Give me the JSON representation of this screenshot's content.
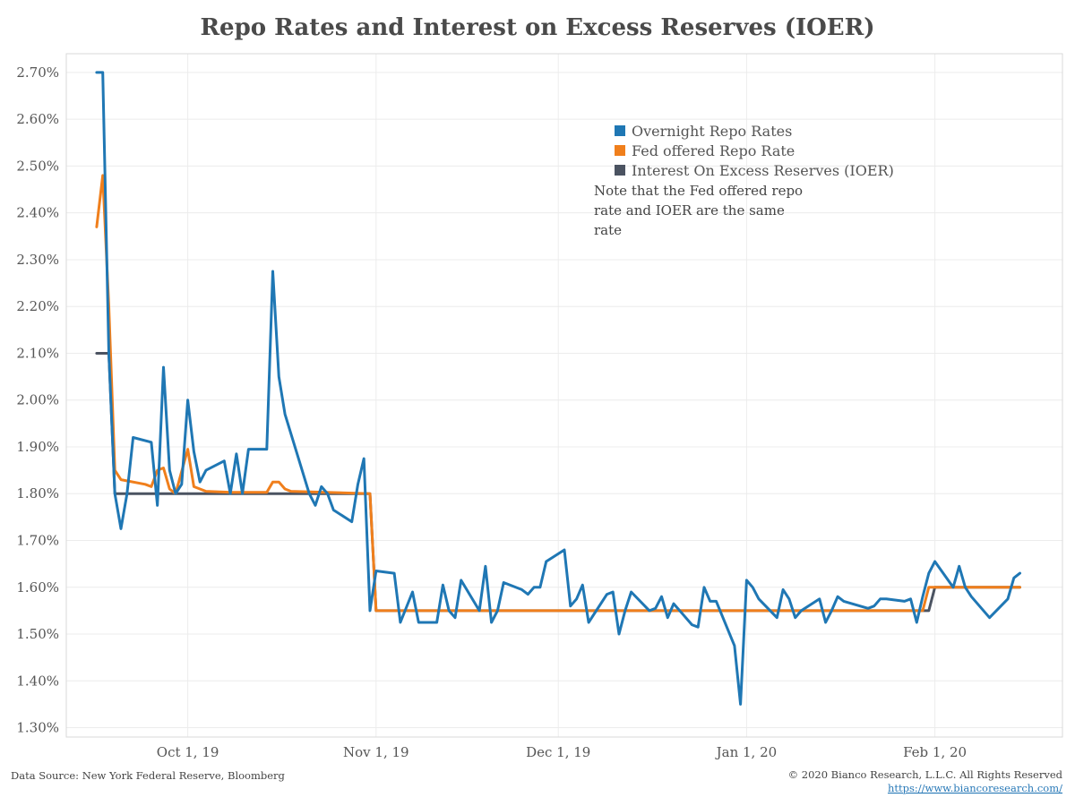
{
  "chart_data": {
    "type": "line",
    "title": "Repo Rates and Interest on Excess Reserves (IOER)",
    "xlabel": "",
    "ylabel": "",
    "ylim": [
      1.28,
      2.74
    ],
    "xlim": [
      "2019-09-11",
      "2020-02-22"
    ],
    "y_ticks": [
      "1.30%",
      "1.40%",
      "1.50%",
      "1.60%",
      "1.70%",
      "1.80%",
      "1.90%",
      "2.00%",
      "2.10%",
      "2.20%",
      "2.30%",
      "2.40%",
      "2.50%",
      "2.60%",
      "2.70%"
    ],
    "x_ticks": [
      {
        "date": "2019-10-01",
        "label": "Oct 1, 19"
      },
      {
        "date": "2019-11-01",
        "label": "Nov 1, 19"
      },
      {
        "date": "2019-12-01",
        "label": "Dec 1, 19"
      },
      {
        "date": "2020-01-01",
        "label": "Jan 1, 20"
      },
      {
        "date": "2020-02-01",
        "label": "Feb 1, 20"
      }
    ],
    "grid": true,
    "legend_position": "top-right",
    "series": [
      {
        "name": "Overnight Repo Rates",
        "color": "#1f77b4",
        "points": [
          [
            "2019-09-16",
            2.7
          ],
          [
            "2019-09-17",
            2.7
          ],
          [
            "2019-09-18",
            2.1
          ],
          [
            "2019-09-19",
            1.8
          ],
          [
            "2019-09-20",
            1.725
          ],
          [
            "2019-09-21",
            1.8
          ],
          [
            "2019-09-22",
            1.92
          ],
          [
            "2019-09-25",
            1.91
          ],
          [
            "2019-09-26",
            1.775
          ],
          [
            "2019-09-27",
            2.07
          ],
          [
            "2019-09-28",
            1.85
          ],
          [
            "2019-09-29",
            1.8
          ],
          [
            "2019-09-30",
            1.82
          ],
          [
            "2019-10-01",
            2.0
          ],
          [
            "2019-10-02",
            1.89
          ],
          [
            "2019-10-03",
            1.825
          ],
          [
            "2019-10-04",
            1.85
          ],
          [
            "2019-10-07",
            1.87
          ],
          [
            "2019-10-08",
            1.8
          ],
          [
            "2019-10-09",
            1.885
          ],
          [
            "2019-10-10",
            1.8
          ],
          [
            "2019-10-11",
            1.895
          ],
          [
            "2019-10-14",
            1.895
          ],
          [
            "2019-10-15",
            2.275
          ],
          [
            "2019-10-16",
            2.05
          ],
          [
            "2019-10-17",
            1.97
          ],
          [
            "2019-10-21",
            1.8
          ],
          [
            "2019-10-22",
            1.775
          ],
          [
            "2019-10-23",
            1.815
          ],
          [
            "2019-10-24",
            1.8
          ],
          [
            "2019-10-25",
            1.765
          ],
          [
            "2019-10-28",
            1.74
          ],
          [
            "2019-10-29",
            1.82
          ],
          [
            "2019-10-30",
            1.875
          ],
          [
            "2019-10-31",
            1.55
          ],
          [
            "2019-11-01",
            1.635
          ],
          [
            "2019-11-04",
            1.63
          ],
          [
            "2019-11-05",
            1.525
          ],
          [
            "2019-11-07",
            1.59
          ],
          [
            "2019-11-08",
            1.525
          ],
          [
            "2019-11-11",
            1.525
          ],
          [
            "2019-11-12",
            1.605
          ],
          [
            "2019-11-13",
            1.55
          ],
          [
            "2019-11-14",
            1.535
          ],
          [
            "2019-11-15",
            1.615
          ],
          [
            "2019-11-18",
            1.55
          ],
          [
            "2019-11-19",
            1.645
          ],
          [
            "2019-11-20",
            1.525
          ],
          [
            "2019-11-21",
            1.55
          ],
          [
            "2019-11-22",
            1.61
          ],
          [
            "2019-11-25",
            1.595
          ],
          [
            "2019-11-26",
            1.585
          ],
          [
            "2019-11-27",
            1.6
          ],
          [
            "2019-11-28",
            1.6
          ],
          [
            "2019-11-29",
            1.655
          ],
          [
            "2019-12-02",
            1.68
          ],
          [
            "2019-12-03",
            1.56
          ],
          [
            "2019-12-04",
            1.575
          ],
          [
            "2019-12-05",
            1.605
          ],
          [
            "2019-12-06",
            1.525
          ],
          [
            "2019-12-09",
            1.585
          ],
          [
            "2019-12-10",
            1.59
          ],
          [
            "2019-12-11",
            1.5
          ],
          [
            "2019-12-12",
            1.55
          ],
          [
            "2019-12-13",
            1.59
          ],
          [
            "2019-12-16",
            1.55
          ],
          [
            "2019-12-17",
            1.555
          ],
          [
            "2019-12-18",
            1.58
          ],
          [
            "2019-12-19",
            1.535
          ],
          [
            "2019-12-20",
            1.565
          ],
          [
            "2019-12-23",
            1.52
          ],
          [
            "2019-12-24",
            1.515
          ],
          [
            "2019-12-25",
            1.6
          ],
          [
            "2019-12-26",
            1.57
          ],
          [
            "2019-12-27",
            1.57
          ],
          [
            "2019-12-30",
            1.475
          ],
          [
            "2019-12-31",
            1.35
          ],
          [
            "2020-01-01",
            1.615
          ],
          [
            "2020-01-02",
            1.6
          ],
          [
            "2020-01-03",
            1.575
          ],
          [
            "2020-01-06",
            1.535
          ],
          [
            "2020-01-07",
            1.595
          ],
          [
            "2020-01-08",
            1.575
          ],
          [
            "2020-01-09",
            1.535
          ],
          [
            "2020-01-10",
            1.55
          ],
          [
            "2020-01-13",
            1.575
          ],
          [
            "2020-01-14",
            1.525
          ],
          [
            "2020-01-15",
            1.55
          ],
          [
            "2020-01-16",
            1.58
          ],
          [
            "2020-01-17",
            1.57
          ],
          [
            "2020-01-21",
            1.555
          ],
          [
            "2020-01-22",
            1.56
          ],
          [
            "2020-01-23",
            1.575
          ],
          [
            "2020-01-24",
            1.575
          ],
          [
            "2020-01-27",
            1.57
          ],
          [
            "2020-01-28",
            1.575
          ],
          [
            "2020-01-29",
            1.525
          ],
          [
            "2020-01-30",
            1.58
          ],
          [
            "2020-01-31",
            1.63
          ],
          [
            "2020-02-01",
            1.655
          ],
          [
            "2020-02-04",
            1.6
          ],
          [
            "2020-02-05",
            1.645
          ],
          [
            "2020-02-06",
            1.6
          ],
          [
            "2020-02-07",
            1.58
          ],
          [
            "2020-02-10",
            1.535
          ],
          [
            "2020-02-13",
            1.575
          ],
          [
            "2020-02-14",
            1.62
          ],
          [
            "2020-02-15",
            1.63
          ]
        ]
      },
      {
        "name": "Fed offered Repo Rate",
        "color": "#f07f1c",
        "points": [
          [
            "2019-09-16",
            2.37
          ],
          [
            "2019-09-17",
            2.48
          ],
          [
            "2019-09-18",
            2.2
          ],
          [
            "2019-09-19",
            1.85
          ],
          [
            "2019-09-20",
            1.83
          ],
          [
            "2019-09-24",
            1.82
          ],
          [
            "2019-09-25",
            1.815
          ],
          [
            "2019-09-26",
            1.85
          ],
          [
            "2019-09-27",
            1.855
          ],
          [
            "2019-09-28",
            1.81
          ],
          [
            "2019-09-29",
            1.8
          ],
          [
            "2019-10-01",
            1.895
          ],
          [
            "2019-10-02",
            1.815
          ],
          [
            "2019-10-03",
            1.81
          ],
          [
            "2019-10-04",
            1.805
          ],
          [
            "2019-10-08",
            1.803
          ],
          [
            "2019-10-14",
            1.803
          ],
          [
            "2019-10-15",
            1.825
          ],
          [
            "2019-10-16",
            1.825
          ],
          [
            "2019-10-17",
            1.81
          ],
          [
            "2019-10-18",
            1.805
          ],
          [
            "2019-10-31",
            1.8
          ],
          [
            "2019-11-01",
            1.55
          ],
          [
            "2019-12-31",
            1.55
          ],
          [
            "2020-01-30",
            1.55
          ],
          [
            "2020-01-31",
            1.6
          ],
          [
            "2020-02-15",
            1.6
          ]
        ]
      },
      {
        "name": "Interest On Excess Reserves (IOER)",
        "color": "#4b5361",
        "points": [
          [
            "2019-09-16",
            2.1
          ],
          [
            "2019-09-18",
            2.1
          ],
          [
            "2019-09-19",
            1.8
          ],
          [
            "2019-10-31",
            1.8
          ],
          [
            "2019-11-01",
            1.55
          ],
          [
            "2020-01-31",
            1.55
          ],
          [
            "2020-02-01",
            1.6
          ],
          [
            "2020-02-15",
            1.6
          ]
        ]
      }
    ]
  },
  "note": {
    "lines": [
      "Note that the Fed offered repo",
      "rate and IOER are the same",
      "rate"
    ]
  },
  "footer": {
    "source": "Data Source: New York Federal Reserve, Bloomberg",
    "copyright": "© 2020 Bianco Research, L.L.C. All Rights Reserved",
    "link": "https://www.biancoresearch.com/"
  }
}
